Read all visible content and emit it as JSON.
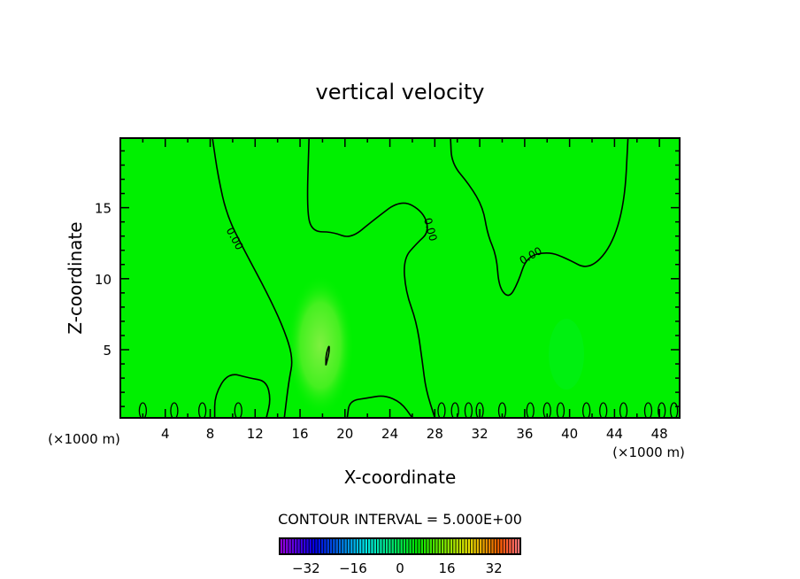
{
  "chart_data": {
    "type": "contour",
    "title": "vertical velocity",
    "xlabel": "X-coordinate",
    "ylabel": "Z-coordinate",
    "x_unit_left": "(×1000 m)",
    "x_unit_right": "(×1000 m)",
    "xlim": [
      0,
      49.8
    ],
    "ylim": [
      0.2,
      19.9
    ],
    "xticks": [
      4,
      8,
      12,
      16,
      20,
      24,
      28,
      32,
      36,
      40,
      44,
      48
    ],
    "yticks": [
      5,
      10,
      15
    ],
    "field_color": "#00f000",
    "contour_label": "0.00",
    "contour_interval_text": "CONTOUR INTERVAL = 5.000E+00",
    "colorbar": {
      "range": [
        -41,
        41
      ],
      "ticks": [
        -32,
        -16,
        0,
        16,
        32
      ],
      "tick_labels": [
        "−32",
        "−16",
        "0",
        "16",
        "32"
      ]
    },
    "contours": [
      {
        "level": 0,
        "points": [
          [
            8.2,
            19.9
          ],
          [
            8.7,
            17.2
          ],
          [
            9.5,
            14.4
          ],
          [
            11.1,
            11.9
          ],
          [
            13.0,
            9.1
          ],
          [
            14.5,
            6.6
          ],
          [
            15.4,
            4.4
          ],
          [
            15.0,
            2.8
          ],
          [
            14.6,
            0.2
          ]
        ]
      },
      {
        "level": 0,
        "points": [
          [
            16.8,
            19.9
          ],
          [
            16.6,
            14.7
          ],
          [
            17.1,
            13.3
          ],
          [
            18.9,
            13.3
          ],
          [
            20.5,
            12.8
          ],
          [
            22.5,
            14.1
          ],
          [
            25.0,
            15.6
          ],
          [
            27.0,
            14.7
          ],
          [
            27.5,
            13.3
          ],
          [
            26.4,
            12.5
          ],
          [
            25.2,
            11.4
          ],
          [
            25.4,
            9.1
          ],
          [
            26.4,
            6.9
          ],
          [
            26.9,
            4.1
          ],
          [
            27.2,
            2.2
          ],
          [
            28.0,
            0.2
          ]
        ]
      },
      {
        "level": 0,
        "points": [
          [
            29.4,
            19.9
          ],
          [
            29.5,
            18.1
          ],
          [
            31.1,
            16.6
          ],
          [
            32.3,
            15.0
          ],
          [
            32.7,
            13.1
          ],
          [
            33.5,
            11.6
          ],
          [
            33.7,
            9.4
          ],
          [
            34.6,
            8.6
          ],
          [
            35.4,
            9.7
          ],
          [
            36.2,
            11.6
          ],
          [
            38.2,
            11.9
          ],
          [
            39.8,
            11.4
          ],
          [
            41.7,
            10.6
          ],
          [
            43.7,
            12.2
          ],
          [
            44.9,
            15.3
          ],
          [
            45.2,
            19.9
          ]
        ]
      },
      {
        "level": 0,
        "points": [
          [
            8.4,
            0.2
          ],
          [
            8.4,
            1.8
          ],
          [
            9.6,
            3.4
          ],
          [
            11.5,
            3.0
          ],
          [
            13.0,
            2.8
          ],
          [
            13.4,
            1.5
          ],
          [
            13.0,
            0.2
          ]
        ]
      },
      {
        "level": 0,
        "points": [
          [
            20.2,
            0.2
          ],
          [
            20.4,
            1.4
          ],
          [
            22.0,
            1.6
          ],
          [
            23.5,
            1.8
          ],
          [
            25.0,
            1.3
          ],
          [
            26.0,
            0.2
          ]
        ]
      },
      {
        "level": 0,
        "points": [
          [
            18.3,
            3.9
          ],
          [
            18.6,
            4.8
          ],
          [
            18.6,
            5.4
          ],
          [
            18.3,
            4.6
          ],
          [
            18.3,
            3.9
          ]
        ]
      }
    ],
    "bottom_cells_x": [
      2.0,
      4.8,
      7.3,
      10.5,
      28.6,
      29.8,
      31.0,
      32.0,
      34.0,
      36.5,
      38.0,
      39.2,
      41.5,
      43.0,
      44.8,
      47.0,
      48.2,
      49.3
    ]
  }
}
